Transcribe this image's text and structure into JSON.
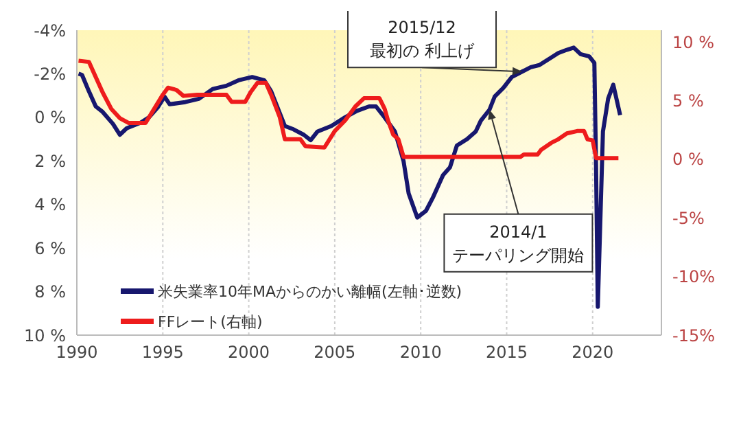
{
  "chart_data": {
    "type": "line",
    "xlim": [
      1990,
      2024
    ],
    "xticks": [
      1990,
      1995,
      2000,
      2005,
      2010,
      2015,
      2020
    ],
    "ylim": [
      10,
      -4
    ],
    "yticks": [
      {
        "value": -4,
        "label": "-4%"
      },
      {
        "value": -2,
        "label": "-2%"
      },
      {
        "value": 0,
        "label": "0 %"
      },
      {
        "value": 2,
        "label": "2 %"
      },
      {
        "value": 4,
        "label": "4 %"
      },
      {
        "value": 6,
        "label": "6 %"
      },
      {
        "value": 8,
        "label": "8 %"
      },
      {
        "value": 10,
        "label": "10 %"
      }
    ],
    "y2lim": [
      -15,
      11
    ],
    "y2ticks": [
      {
        "value": 10,
        "label": "10 %"
      },
      {
        "value": 5,
        "label": "5 %"
      },
      {
        "value": 0,
        "label": "0 %"
      },
      {
        "value": -5,
        "label": "-5%"
      },
      {
        "value": -10,
        "label": "-10%"
      },
      {
        "value": -15,
        "label": "-15%"
      }
    ],
    "grid": true,
    "legend": "bottom left",
    "series": [
      {
        "name": "米失業率10年MAからのかい離幅(左軸･逆数)",
        "color": "#17176e",
        "x": [
          1990.1,
          1990.3,
          1990.7,
          1991.1,
          1991.5,
          1992.1,
          1992.5,
          1992.9,
          1993.7,
          1994.2,
          1994.7,
          1995.1,
          1995.4,
          1996.3,
          1997.1,
          1997.9,
          1998.7,
          1999.4,
          2000.2,
          2000.9,
          2001.3,
          2001.8,
          2002.1,
          2002.6,
          2003.2,
          2003.6,
          2004.0,
          2004.8,
          2005.6,
          2006.3,
          2007.0,
          2007.4,
          2007.9,
          2008.5,
          2009.0,
          2009.3,
          2009.8,
          2010.3,
          2010.7,
          2011.1,
          2011.3,
          2011.7,
          2012.1,
          2012.7,
          2013.2,
          2013.5,
          2014.0,
          2014.3,
          2014.8,
          2015.3,
          2015.9,
          2016.4,
          2016.9,
          2017.5,
          2018.0,
          2018.5,
          2018.9,
          2019.3,
          2019.8,
          2020.1,
          2020.2,
          2020.3,
          2020.6,
          2020.9,
          2021.2,
          2021.6
        ],
        "values": [
          -2.0,
          -1.95,
          -1.2,
          -0.5,
          -0.25,
          0.3,
          0.8,
          0.5,
          0.25,
          0,
          -0.45,
          -0.95,
          -0.6,
          -0.7,
          -0.85,
          -1.3,
          -1.45,
          -1.7,
          -1.85,
          -1.7,
          -1.2,
          -0.2,
          0.4,
          0.55,
          0.8,
          1.05,
          0.65,
          0.4,
          0,
          -0.3,
          -0.5,
          -0.5,
          0,
          0.65,
          2.0,
          3.5,
          4.6,
          4.3,
          3.7,
          3.0,
          2.65,
          2.3,
          1.3,
          1.0,
          0.65,
          0.15,
          -0.35,
          -0.95,
          -1.35,
          -1.85,
          -2.1,
          -2.3,
          -2.4,
          -2.7,
          -2.95,
          -3.1,
          -3.2,
          -2.9,
          -2.8,
          -2.5,
          2.3,
          8.7,
          0.65,
          -0.85,
          -1.5,
          -0.1
        ]
      },
      {
        "name": "FFレート(右軸)",
        "color": "#ee1c1c",
        "axis": "y2",
        "x": [
          1990.1,
          1990.7,
          1991.1,
          1991.5,
          1992.0,
          1992.5,
          1993.0,
          1994.0,
          1994.5,
          1995.0,
          1995.3,
          1995.8,
          1996.2,
          1997.0,
          1998.7,
          1999.0,
          1999.8,
          2000.1,
          2000.5,
          2001.0,
          2001.3,
          2001.8,
          2002.1,
          2003.0,
          2003.3,
          2004.4,
          2005.0,
          2005.6,
          2006.2,
          2006.7,
          2007.6,
          2007.9,
          2008.1,
          2008.4,
          2008.7,
          2009.0,
          2015.8,
          2016.0,
          2016.8,
          2017.0,
          2017.6,
          2018.0,
          2018.5,
          2019.1,
          2019.5,
          2019.7,
          2020.0,
          2020.2,
          2021.5
        ],
        "values": [
          8.4,
          8.3,
          7.0,
          5.7,
          4.3,
          3.5,
          3.1,
          3.1,
          4.3,
          5.5,
          6.1,
          5.9,
          5.4,
          5.5,
          5.5,
          4.9,
          4.9,
          5.7,
          6.5,
          6.5,
          5.5,
          3.6,
          1.7,
          1.7,
          1.1,
          1.0,
          2.4,
          3.3,
          4.5,
          5.2,
          5.2,
          4.3,
          3.3,
          2.1,
          1.7,
          0.2,
          0.2,
          0.4,
          0.4,
          0.8,
          1.4,
          1.7,
          2.2,
          2.4,
          2.4,
          1.7,
          1.6,
          0.1,
          0.1
        ]
      }
    ],
    "annotations": [
      {
        "text": "2015/12\n最初の 利上げ",
        "x": 2015.9,
        "y": -2.1
      },
      {
        "text": "2014/1\nテーパリング開始",
        "x": 2014.0,
        "y": -0.35
      }
    ]
  }
}
